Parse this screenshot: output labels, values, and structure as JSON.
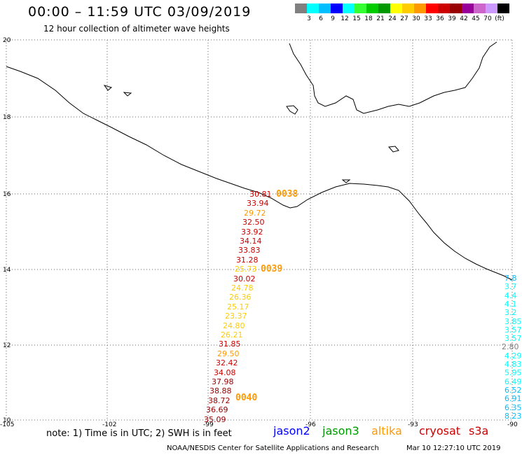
{
  "header": {
    "title": "00:00 – 11:59 UTC 03/09/2019",
    "subtitle": "12 hour collection of altimeter wave heights"
  },
  "color_scale": {
    "swatches": [
      "#808080",
      "#00ffff",
      "#00bfff",
      "#0000ff",
      "#00ffff",
      "#33ff33",
      "#00cc00",
      "#009900",
      "#ffff00",
      "#ffcc00",
      "#ff9900",
      "#ff0000",
      "#cc0000",
      "#990000",
      "#990099",
      "#cc66cc",
      "#cc99ff",
      "#000000"
    ],
    "labels": [
      "3",
      "6",
      "9",
      "12",
      "15",
      "18",
      "21",
      "24",
      "27",
      "30",
      "33",
      "36",
      "39",
      "42",
      "45",
      "70",
      "(ft)"
    ]
  },
  "map": {
    "lat_labels": [
      "20",
      "18",
      "16",
      "14",
      "12",
      "10"
    ],
    "lon_labels": [
      "-105",
      "-102",
      "-99",
      "-96",
      "-93",
      "-90"
    ]
  },
  "track_central": {
    "values": [
      {
        "v": "30.81",
        "c": "#cc0000"
      },
      {
        "v": "33.94",
        "c": "#cc0000"
      },
      {
        "v": "29.72",
        "c": "#ff9900"
      },
      {
        "v": "32.50",
        "c": "#cc0000"
      },
      {
        "v": "33.92",
        "c": "#cc0000"
      },
      {
        "v": "34.14",
        "c": "#cc0000"
      },
      {
        "v": "33.83",
        "c": "#cc0000"
      },
      {
        "v": "31.28",
        "c": "#cc0000"
      },
      {
        "v": "25.73",
        "c": "#ffcc00"
      },
      {
        "v": "30.02",
        "c": "#cc0000"
      },
      {
        "v": "24.78",
        "c": "#ffcc00"
      },
      {
        "v": "26.36",
        "c": "#ffcc00"
      },
      {
        "v": "25.17",
        "c": "#ffcc00"
      },
      {
        "v": "23.37",
        "c": "#ffcc00"
      },
      {
        "v": "24.80",
        "c": "#ffcc00"
      },
      {
        "v": "26.21",
        "c": "#ffcc00"
      },
      {
        "v": "31.85",
        "c": "#cc0000"
      },
      {
        "v": "29.50",
        "c": "#ff9900"
      },
      {
        "v": "32.42",
        "c": "#cc0000"
      },
      {
        "v": "34.08",
        "c": "#cc0000"
      },
      {
        "v": "37.98",
        "c": "#990000"
      },
      {
        "v": "38.88",
        "c": "#990000"
      },
      {
        "v": "38.72",
        "c": "#990000"
      },
      {
        "v": "36.69",
        "c": "#990000"
      },
      {
        "v": "35.09",
        "c": "#990000"
      }
    ],
    "times": [
      "0038",
      "0039",
      "0040"
    ],
    "time_color": "#ff9900"
  },
  "track_east": {
    "values": [
      {
        "v": "7.8",
        "c": "#00bfff"
      },
      {
        "v": "3.7",
        "c": "#00ffff"
      },
      {
        "v": "4.4",
        "c": "#00ffff"
      },
      {
        "v": "4.1",
        "c": "#00ffff"
      },
      {
        "v": "3.2",
        "c": "#00ffff"
      },
      {
        "v": "3.85",
        "c": "#00ffff"
      },
      {
        "v": "3.57",
        "c": "#00ffff"
      },
      {
        "v": "3.57",
        "c": "#00ffff"
      },
      {
        "v": "2.80",
        "c": "#808080"
      },
      {
        "v": "4.29",
        "c": "#00ffff"
      },
      {
        "v": "4.83",
        "c": "#00ffff"
      },
      {
        "v": "5.95",
        "c": "#00ffff"
      },
      {
        "v": "6.49",
        "c": "#00ffff"
      },
      {
        "v": "6.52",
        "c": "#00bfff"
      },
      {
        "v": "6.91",
        "c": "#00bfff"
      },
      {
        "v": "6.35",
        "c": "#00bfff"
      },
      {
        "v": "8.23",
        "c": "#00bfff"
      }
    ]
  },
  "footer": {
    "note": "note: 1) Time is in UTC; 2) SWH is in feet",
    "satellites": [
      {
        "name": "jason2",
        "color": "#0000ff"
      },
      {
        "name": "jason3",
        "color": "#009900"
      },
      {
        "name": "altika",
        "color": "#ff9900"
      },
      {
        "name": "cryosat",
        "color": "#cc0000"
      },
      {
        "name": "s3a",
        "color": "#cc0000"
      }
    ],
    "credit": "NOAA/NESDIS Center for Satellite Applications and Research",
    "stamp": "Mar 10 12:27:10 UTC 2019"
  }
}
